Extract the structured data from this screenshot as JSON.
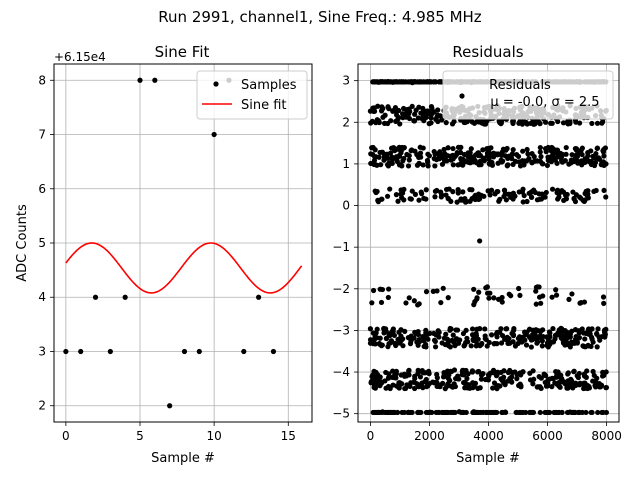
{
  "figure": {
    "suptitle": "Run 2991, channel1, Sine Freq.: 4.985 MHz"
  },
  "chart_data": [
    {
      "type": "scatter",
      "title": "Sine Fit",
      "xlabel": "Sample #",
      "ylabel": "ADC Counts",
      "offset_text": "+6.15e4",
      "xlim": [
        -0.8,
        16.6
      ],
      "ylim": [
        1.7,
        8.3
      ],
      "xticks": [
        0,
        5,
        10,
        15
      ],
      "yticks": [
        2,
        3,
        4,
        5,
        6,
        7,
        8
      ],
      "grid": true,
      "legend_position": "top-right",
      "series": [
        {
          "name": "Samples",
          "kind": "points",
          "color": "#000000",
          "x": [
            0,
            1,
            2,
            3,
            4,
            5,
            6,
            7,
            8,
            9,
            10,
            11,
            12,
            13,
            14
          ],
          "y": [
            3,
            3,
            4,
            3,
            4,
            8,
            8,
            2,
            3,
            3,
            7,
            8,
            3,
            4,
            3
          ]
        },
        {
          "name": "Sine fit",
          "kind": "line",
          "color": "#ff0000",
          "model": {
            "offset": 4.54,
            "amplitude": 0.46,
            "period": 8.025,
            "peak_x": 1.75,
            "x_start": 0,
            "x_end": 15.9
          }
        }
      ]
    },
    {
      "type": "scatter",
      "title": "Residuals",
      "xlabel": "Sample #",
      "ylabel": "",
      "xlim": [
        -420,
        8420
      ],
      "ylim": [
        -5.2,
        3.4
      ],
      "xticks": [
        0,
        2000,
        4000,
        6000,
        8000
      ],
      "yticks": [
        -5,
        -4,
        -3,
        -2,
        -1,
        0,
        1,
        2,
        3
      ],
      "grid": true,
      "legend_position": "top-right",
      "legend_label": "Residuals",
      "stats_label": "μ = -0.0, σ = 2.5",
      "series": [
        {
          "name": "Residuals",
          "kind": "points",
          "color": "#000000",
          "x_range": [
            0,
            8000
          ],
          "levels": [
            3,
            2,
            1,
            0,
            -2,
            -3,
            -4,
            -5
          ],
          "level_counts": [
            300,
            300,
            300,
            140,
            55,
            300,
            300,
            150
          ],
          "level_spread": 0.5,
          "outliers": [
            {
              "x": 3700,
              "y": -0.85
            }
          ]
        }
      ]
    }
  ]
}
